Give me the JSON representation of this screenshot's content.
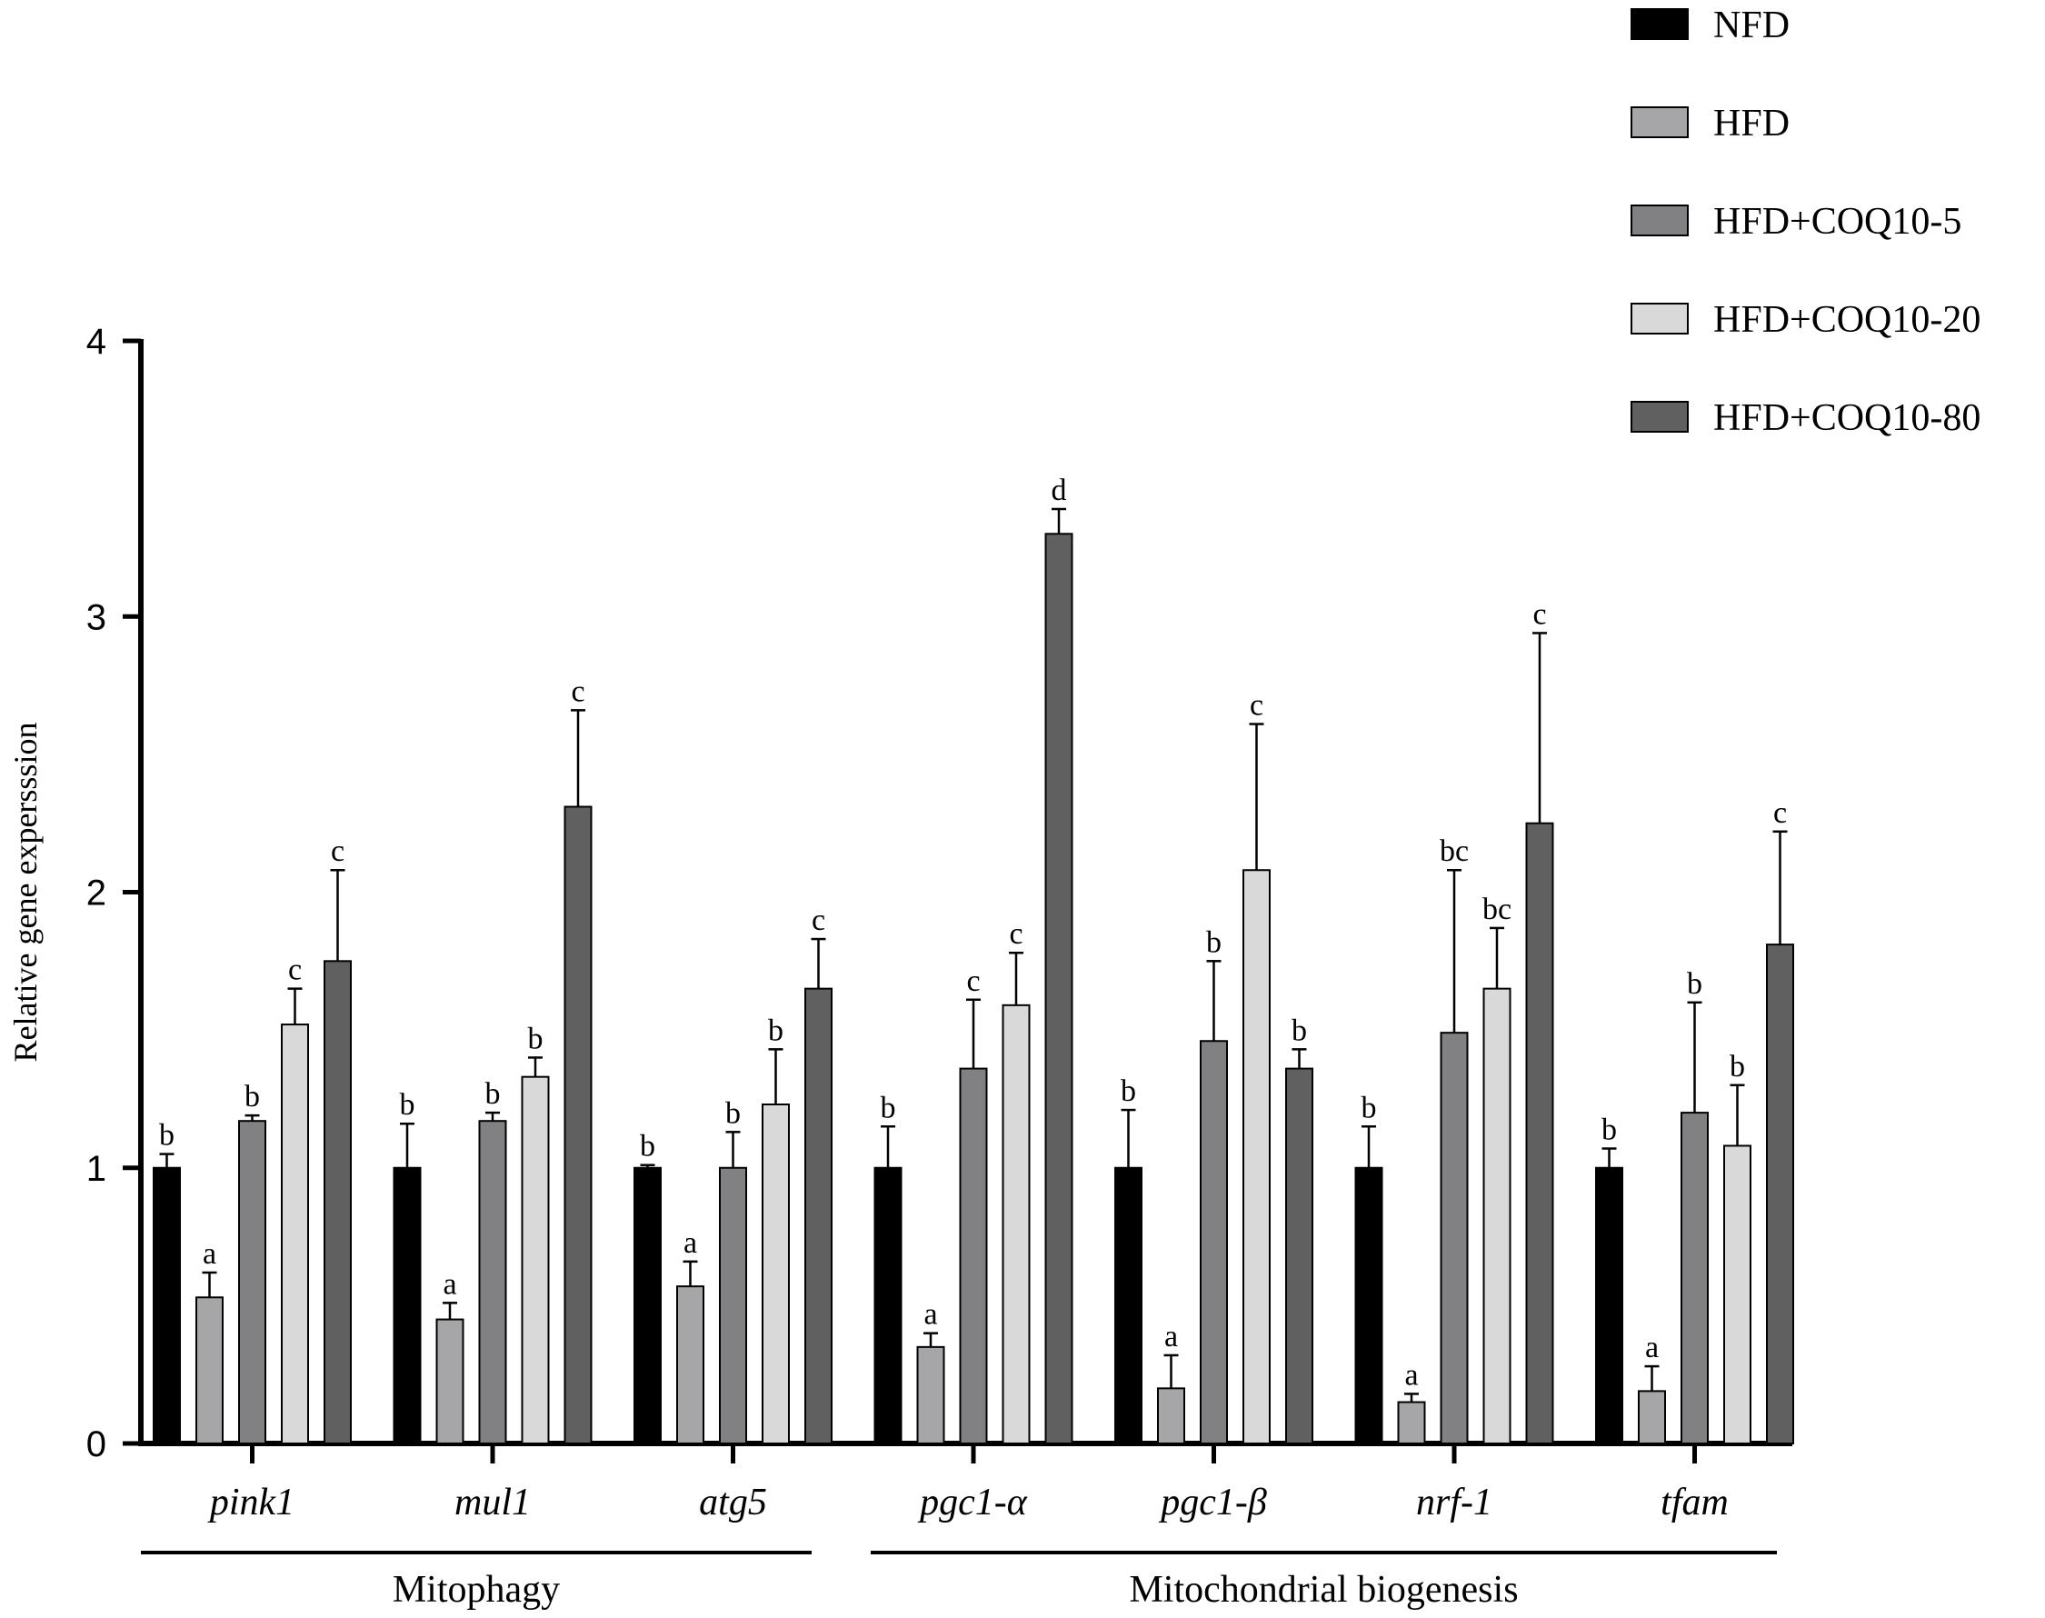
{
  "chart_data": {
    "type": "bar",
    "ylabel": "Relative gene expersssion",
    "ylim": [
      0,
      4
    ],
    "yticks": [
      "0",
      "1",
      "2",
      "3",
      "4"
    ],
    "categories": [
      "pink1",
      "mul1",
      "atg5",
      "pgc1-α",
      "pgc1-β",
      "nrf-1",
      "tfam"
    ],
    "groups": [
      {
        "label": "Mitophagy",
        "categories": [
          "pink1",
          "mul1",
          "atg5"
        ]
      },
      {
        "label": "Mitochondrial biogenesis",
        "categories": [
          "pgc1-α",
          "pgc1-β",
          "nrf-1",
          "tfam"
        ]
      }
    ],
    "series": [
      {
        "name": "NFD",
        "color": "#000000",
        "values": [
          1.0,
          1.0,
          1.0,
          1.0,
          1.0,
          1.0,
          1.0
        ],
        "errors": [
          0.05,
          0.16,
          0.01,
          0.15,
          0.21,
          0.15,
          0.07
        ],
        "letters": [
          "b",
          "b",
          "b",
          "b",
          "b",
          "b",
          "b"
        ]
      },
      {
        "name": "HFD",
        "color": "#a6a6a8",
        "values": [
          0.53,
          0.45,
          0.57,
          0.35,
          0.2,
          0.15,
          0.19
        ],
        "errors": [
          0.09,
          0.06,
          0.09,
          0.05,
          0.12,
          0.03,
          0.09
        ],
        "letters": [
          "a",
          "a",
          "a",
          "a",
          "a",
          "a",
          "a"
        ]
      },
      {
        "name": "HFD+COQ10-5",
        "color": "#818183",
        "values": [
          1.17,
          1.17,
          1.0,
          1.36,
          1.46,
          1.49,
          1.2
        ],
        "errors": [
          0.02,
          0.03,
          0.13,
          0.25,
          0.29,
          0.59,
          0.4
        ],
        "letters": [
          "b",
          "b",
          "b",
          "c",
          "b",
          "bc",
          "b"
        ]
      },
      {
        "name": "HFD+COQ10-20",
        "color": "#d9d9d9",
        "values": [
          1.52,
          1.33,
          1.23,
          1.59,
          2.08,
          1.65,
          1.08
        ],
        "errors": [
          0.13,
          0.07,
          0.2,
          0.19,
          0.53,
          0.22,
          0.22
        ],
        "letters": [
          "c",
          "b",
          "b",
          "c",
          "c",
          "bc",
          "b"
        ]
      },
      {
        "name": "HFD+COQ10-80",
        "color": "#606060",
        "values": [
          1.75,
          2.31,
          1.65,
          3.3,
          1.36,
          2.25,
          1.81
        ],
        "errors": [
          0.33,
          0.35,
          0.18,
          0.09,
          0.07,
          0.69,
          0.41
        ],
        "letters": [
          "c",
          "c",
          "c",
          "d",
          "b",
          "c",
          "c"
        ]
      }
    ],
    "legend_position": "top-right",
    "grid": false
  }
}
